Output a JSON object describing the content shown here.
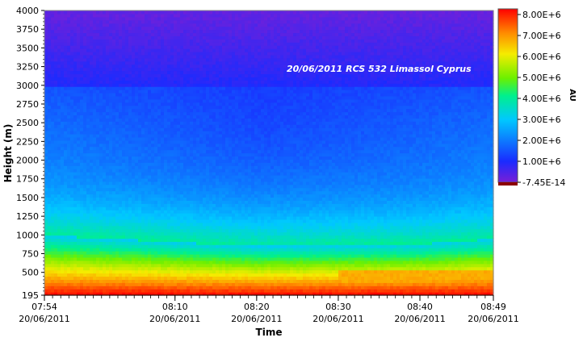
{
  "chart_data": {
    "type": "heatmap",
    "annotation": "20/06/2011 RCS 532 Limassol Cyprus",
    "xlabel": "Time",
    "ylabel": "Height (m)",
    "colorbar_label": "AU",
    "ylim": [
      195,
      4000
    ],
    "y_ticks": [
      195,
      500,
      750,
      1000,
      1250,
      1500,
      1750,
      2000,
      2250,
      2500,
      2750,
      3000,
      3250,
      3500,
      3750,
      4000
    ],
    "y_tick_labels": [
      "195",
      "500",
      "750",
      "1000",
      "1250",
      "1500",
      "1750",
      "2000",
      "2250",
      "2500",
      "2750",
      "3000",
      "3250",
      "3500",
      "3750",
      "4000"
    ],
    "x_range_minutes": [
      "07:54",
      "08:49"
    ],
    "x_ticks": [
      {
        "time": "07:54",
        "date": "20/06/2011"
      },
      {
        "time": "08:10",
        "date": "20/06/2011"
      },
      {
        "time": "08:20",
        "date": "20/06/2011"
      },
      {
        "time": "08:30",
        "date": "20/06/2011"
      },
      {
        "time": "08:40",
        "date": "20/06/2011"
      },
      {
        "time": "08:49",
        "date": "20/06/2011"
      }
    ],
    "colorbar": {
      "min": -7.45e-14,
      "max": 8000000.0,
      "tick_values": [
        8000000.0,
        7000000.0,
        6000000.0,
        5000000.0,
        4000000.0,
        3000000.0,
        2000000.0,
        1000000.0,
        -7.45e-14
      ],
      "tick_labels": [
        "8.00E+6",
        "7.00E+6",
        "6.00E+6",
        "5.00E+6",
        "4.00E+6",
        "3.00E+6",
        "2.00E+6",
        "1.00E+6",
        "-7.45E-14"
      ],
      "colors": [
        "#7a1fd6",
        "#1a2bff",
        "#00c8ff",
        "#00f08c",
        "#6cf000",
        "#f5ec00",
        "#ff8c00",
        "#ff0000"
      ]
    },
    "profile_summary": [
      {
        "time": "07:54",
        "aerosol_layer_top_m": 1000,
        "signal_near_ground": 8000000.0
      },
      {
        "time": "08:20",
        "aerosol_layer_top_m": 850,
        "signal_near_ground": 8000000.0
      },
      {
        "time": "08:40",
        "aerosol_layer_top_m": 880,
        "signal_near_ground": 8000000.0
      },
      {
        "time": "08:49",
        "aerosol_layer_top_m": 950,
        "signal_near_ground": 8000000.0
      }
    ]
  }
}
